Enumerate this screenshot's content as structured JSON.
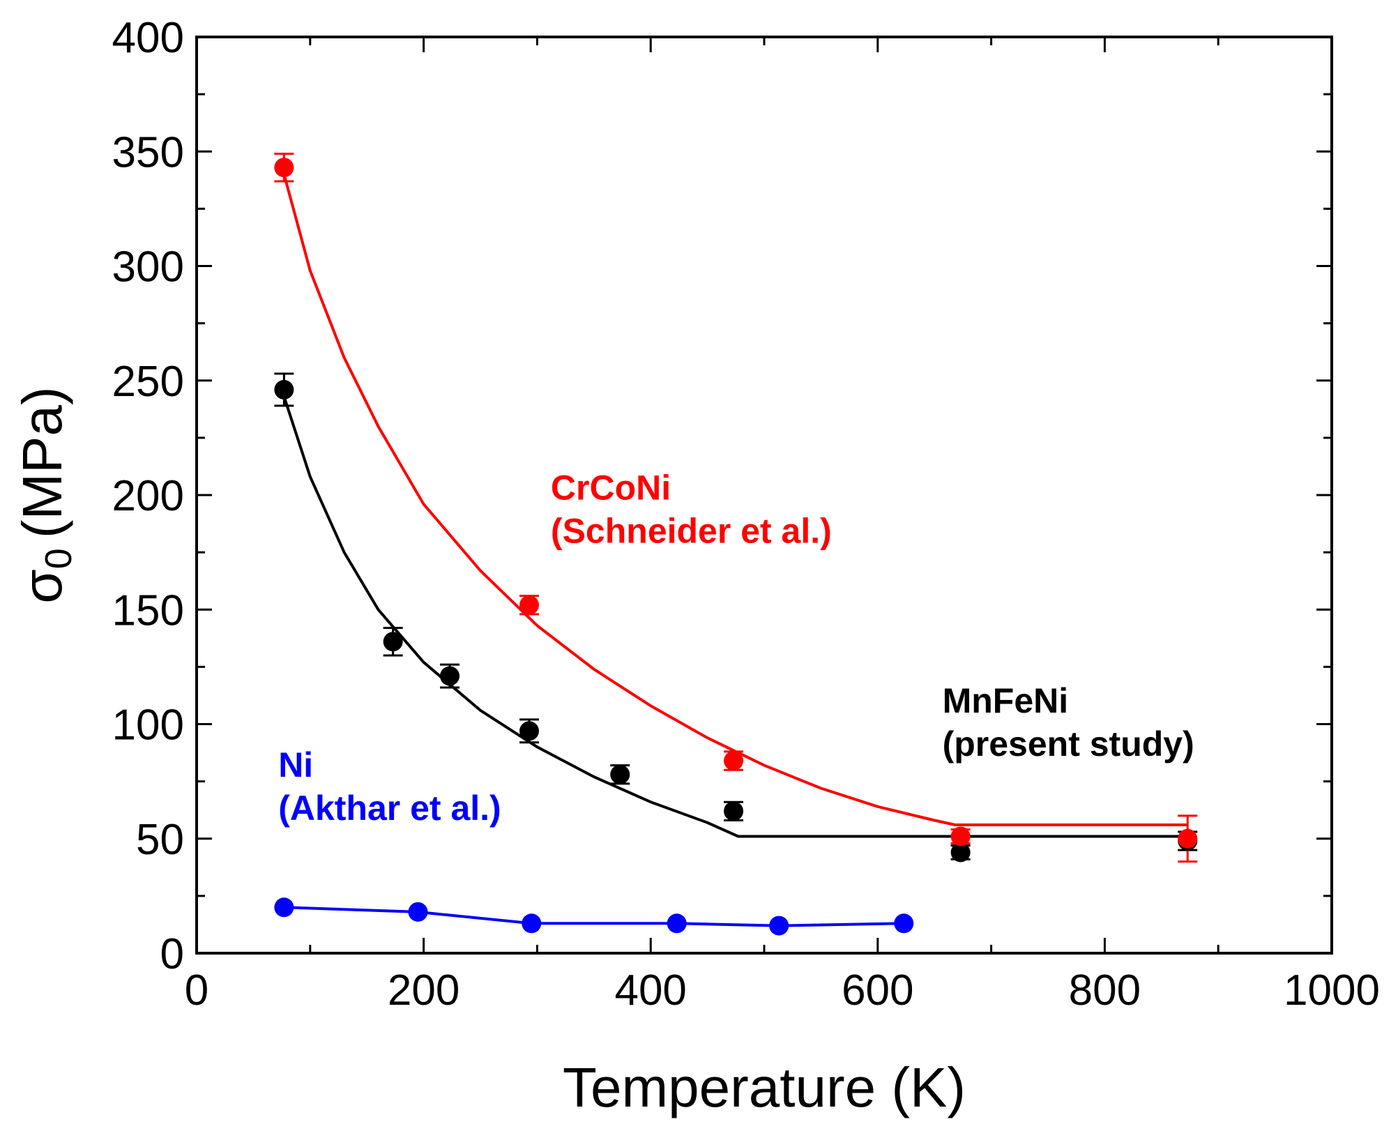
{
  "chart_data": {
    "type": "scatter",
    "title": "",
    "xlabel": "Temperature (K)",
    "ylabel_symbol": "σ",
    "ylabel_subscript": "0",
    "ylabel_unit": "(MPa)",
    "xlim": [
      0,
      1000
    ],
    "ylim": [
      0,
      400
    ],
    "xticks": [
      0,
      200,
      400,
      600,
      800,
      1000
    ],
    "yticks": [
      0,
      50,
      100,
      150,
      200,
      250,
      300,
      350,
      400
    ],
    "xtick_labels": [
      "0",
      "200",
      "400",
      "600",
      "800",
      "1000"
    ],
    "ytick_labels": [
      "0",
      "50",
      "100",
      "150",
      "200",
      "250",
      "300",
      "350",
      "400"
    ],
    "grid": false,
    "series": [
      {
        "id": "mnfeni",
        "name": "MnFeNi (present study)",
        "color": "#000000",
        "points": [
          {
            "x": 77,
            "y": 246,
            "err": 7
          },
          {
            "x": 173,
            "y": 136,
            "err": 6
          },
          {
            "x": 223,
            "y": 121,
            "err": 5
          },
          {
            "x": 293,
            "y": 97,
            "err": 5
          },
          {
            "x": 373,
            "y": 78,
            "err": 4
          },
          {
            "x": 473,
            "y": 62,
            "err": 4
          },
          {
            "x": 673,
            "y": 44,
            "err": 3
          },
          {
            "x": 873,
            "y": 49,
            "err": 4
          }
        ],
        "fit": [
          [
            77,
            243
          ],
          [
            100,
            208
          ],
          [
            130,
            175
          ],
          [
            160,
            150
          ],
          [
            200,
            127
          ],
          [
            250,
            106
          ],
          [
            300,
            90
          ],
          [
            350,
            77
          ],
          [
            400,
            66
          ],
          [
            450,
            57
          ],
          [
            477,
            51
          ],
          [
            873,
            51
          ]
        ]
      },
      {
        "id": "crconi",
        "name": "CrCoNi (Schneider et al.)",
        "color": "#ff0000",
        "points": [
          {
            "x": 77,
            "y": 343,
            "err": 6
          },
          {
            "x": 293,
            "y": 152,
            "err": 4
          },
          {
            "x": 473,
            "y": 84,
            "err": 4
          },
          {
            "x": 673,
            "y": 51,
            "err": 3
          },
          {
            "x": 873,
            "y": 50,
            "err": 10
          }
        ],
        "fit": [
          [
            77,
            340
          ],
          [
            100,
            298
          ],
          [
            130,
            260
          ],
          [
            160,
            230
          ],
          [
            200,
            196
          ],
          [
            250,
            167
          ],
          [
            300,
            143
          ],
          [
            350,
            124
          ],
          [
            400,
            108
          ],
          [
            450,
            94
          ],
          [
            500,
            82
          ],
          [
            550,
            72
          ],
          [
            600,
            64
          ],
          [
            650,
            58
          ],
          [
            668,
            56
          ],
          [
            873,
            56
          ]
        ]
      },
      {
        "id": "ni",
        "name": "Ni (Akthar et al.)",
        "color": "#0000ff",
        "points": [
          {
            "x": 77,
            "y": 20
          },
          {
            "x": 195,
            "y": 18
          },
          {
            "x": 295,
            "y": 13
          },
          {
            "x": 423,
            "y": 13
          },
          {
            "x": 513,
            "y": 12
          },
          {
            "x": 623,
            "y": 13
          }
        ]
      }
    ],
    "annotations": [
      {
        "id": "crconi-label",
        "lines": [
          "CrCoNi",
          "(Schneider et al.)"
        ],
        "color": "#ff0000",
        "x": 312,
        "y": 198
      },
      {
        "id": "mnfeni-label",
        "lines": [
          "MnFeNi",
          "(present study)"
        ],
        "color": "#000000",
        "x": 657,
        "y": 105
      },
      {
        "id": "ni-label",
        "lines": [
          "Ni",
          "(Akthar et al.)"
        ],
        "color": "#0000ff",
        "x": 72,
        "y": 77
      }
    ]
  }
}
